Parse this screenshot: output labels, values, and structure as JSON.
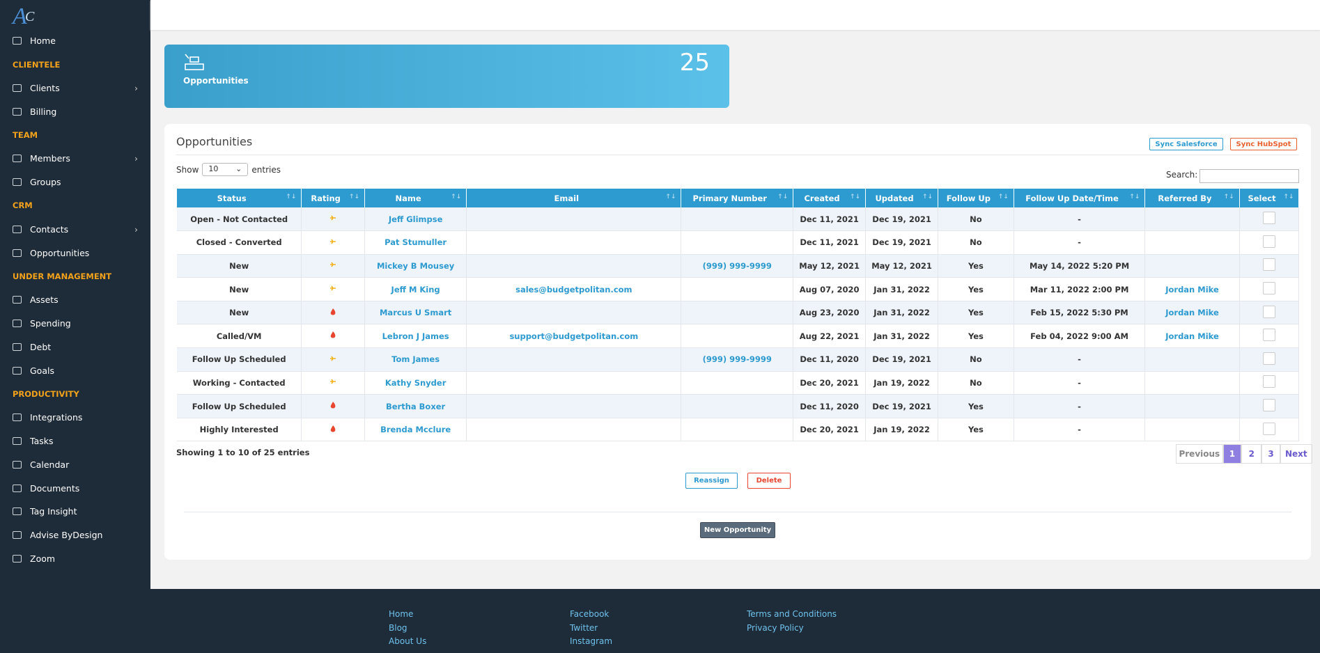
{
  "sidebar": {
    "items": [
      {
        "label": "Home"
      },
      {
        "label": "CLIENTELE",
        "section": true
      },
      {
        "label": "Clients",
        "sub": true
      },
      {
        "label": "Billing"
      },
      {
        "label": "TEAM",
        "section": true
      },
      {
        "label": "Members",
        "sub": true
      },
      {
        "label": "Groups"
      },
      {
        "label": "CRM",
        "section": true
      },
      {
        "label": "Contacts",
        "sub": true
      },
      {
        "label": "Opportunities"
      },
      {
        "label": "UNDER MANAGEMENT",
        "section": true
      },
      {
        "label": "Assets"
      },
      {
        "label": "Spending"
      },
      {
        "label": "Debt"
      },
      {
        "label": "Goals"
      },
      {
        "label": "PRODUCTIVITY",
        "section": true
      },
      {
        "label": "Integrations"
      },
      {
        "label": "Tasks"
      },
      {
        "label": "Calendar"
      },
      {
        "label": "Documents"
      },
      {
        "label": "Tag Insight"
      },
      {
        "label": "Advise ByDesign"
      },
      {
        "label": "Zoom"
      }
    ]
  },
  "card": {
    "label": "Opportunities",
    "count": "25"
  },
  "panel": {
    "title": "Opportunities",
    "sync_salesforce": "Sync Salesforce",
    "sync_hubspot": "Sync HubSpot",
    "show": "Show",
    "page_size": "10",
    "entries": "entries",
    "search": "Search:"
  },
  "table": {
    "columns": [
      "Status",
      "Rating",
      "Name",
      "Email",
      "Primary Number",
      "Created",
      "Updated",
      "Follow Up",
      "Follow Up Date/Time",
      "Referred By",
      "Select"
    ],
    "rating_icons": {
      "fire": "#e8452f",
      "sun": "#f3b21b"
    },
    "rows": [
      [
        "Open - Not Contacted",
        "sun",
        "Jeff Glimpse",
        null,
        null,
        "Dec 11, 2021",
        "Dec 19, 2021",
        "No",
        "-",
        null
      ],
      [
        "Closed - Converted",
        "sun",
        "Pat Stumuller",
        null,
        null,
        "Dec 11, 2021",
        "Dec 19, 2021",
        "No",
        "-",
        null
      ],
      [
        "New",
        "sun",
        "Mickey B Mousey",
        null,
        "(999) 999-9999",
        "May 12, 2021",
        "May 12, 2021",
        "Yes",
        "May 14, 2022 5:20 PM",
        null
      ],
      [
        "New",
        "sun",
        "Jeff M King",
        "sales@budgetpolitan.com",
        null,
        "Aug 07, 2020",
        "Jan 31, 2022",
        "Yes",
        "Mar 11, 2022 2:00 PM",
        "Jordan Mike"
      ],
      [
        "New",
        "fire",
        "Marcus U Smart",
        null,
        null,
        "Aug 23, 2020",
        "Jan 31, 2022",
        "Yes",
        "Feb 15, 2022 5:30 PM",
        "Jordan Mike"
      ],
      [
        "Called/VM",
        "fire",
        "Lebron J James",
        "support@budgetpolitan.com",
        null,
        "Aug 22, 2021",
        "Jan 31, 2022",
        "Yes",
        "Feb 04, 2022 9:00 AM",
        "Jordan Mike"
      ],
      [
        "Follow Up Scheduled",
        "sun",
        "Tom James",
        null,
        "(999) 999-9999",
        "Dec 11, 2020",
        "Dec 19, 2021",
        "No",
        "-",
        null
      ],
      [
        "Working - Contacted",
        "sun",
        "Kathy Snyder",
        null,
        null,
        "Dec 20, 2021",
        "Jan 19, 2022",
        "No",
        "-",
        null
      ],
      [
        "Follow Up Scheduled",
        "fire",
        "Bertha Boxer",
        null,
        null,
        "Dec 11, 2020",
        "Dec 19, 2021",
        "Yes",
        "-",
        null
      ],
      [
        "Highly Interested",
        "fire",
        "Brenda Mcclure",
        null,
        null,
        "Dec 20, 2021",
        "Jan 19, 2022",
        "Yes",
        "-",
        null
      ]
    ]
  },
  "info": "Showing 1 to 10 of 25 entries",
  "pagination": [
    "Previous",
    "1",
    "2",
    "3",
    "Next"
  ],
  "actions": {
    "reassign": "Reassign",
    "delete": "Delete",
    "new": "New Opportunity"
  },
  "footer": {
    "columns": [
      [
        "Home",
        "Blog",
        "About Us"
      ],
      [
        "Facebook",
        "Twitter",
        "Instagram"
      ],
      [
        "Terms and Conditions",
        "Privacy Policy"
      ]
    ]
  }
}
